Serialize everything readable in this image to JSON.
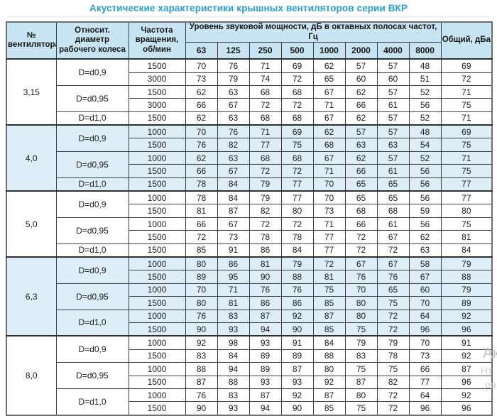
{
  "title": "Акустические характеристики крышных вентиляторов серии ВКР",
  "colors": {
    "title_accent": "#2a9ed6",
    "header_bg": "#c8e4f2",
    "highlight_row_bg": "#ddeef8",
    "border": "#3f3f3f",
    "watermark": "#c6c9cc"
  },
  "table": {
    "header": {
      "col_fan": "№ вентилятора",
      "col_diameter": "Относит. диаметр рабочего колеса",
      "col_speed": "Частота вращения, об/мин",
      "col_levels": "Уровень звуковой мощности, дБ в октавных полосах частот, Гц",
      "frequencies": [
        "63",
        "125",
        "250",
        "500",
        "1000",
        "2000",
        "4000",
        "8000"
      ],
      "col_total": "Общий, дБа"
    },
    "groups": [
      {
        "fan": "3,15",
        "highlight": false,
        "sections": [
          {
            "diameter": "D=d0,9",
            "rows": [
              {
                "speed": "1500",
                "levels": [
                  70,
                  76,
                  71,
                  69,
                  62,
                  57,
                  57,
                  48
                ],
                "total": 69
              },
              {
                "speed": "3000",
                "levels": [
                  73,
                  79,
                  74,
                  72,
                  65,
                  60,
                  60,
                  51
                ],
                "total": 72
              }
            ]
          },
          {
            "diameter": "D=d0,95",
            "rows": [
              {
                "speed": "1500",
                "levels": [
                  62,
                  63,
                  68,
                  68,
                  67,
                  62,
                  57,
                  52
                ],
                "total": 71
              },
              {
                "speed": "3000",
                "levels": [
                  66,
                  67,
                  72,
                  72,
                  71,
                  66,
                  61,
                  56
                ],
                "total": 75
              }
            ]
          },
          {
            "diameter": "D=d1,0",
            "rows": [
              {
                "speed": "1500",
                "levels": [
                  62,
                  63,
                  68,
                  68,
                  67,
                  62,
                  57,
                  52
                ],
                "total": 71
              }
            ]
          }
        ]
      },
      {
        "fan": "4,0",
        "highlight": true,
        "sections": [
          {
            "diameter": "D=d0,9",
            "rows": [
              {
                "speed": "1000",
                "levels": [
                  70,
                  76,
                  71,
                  69,
                  62,
                  57,
                  57,
                  48
                ],
                "total": 69
              },
              {
                "speed": "1500",
                "levels": [
                  76,
                  82,
                  77,
                  75,
                  68,
                  63,
                  63,
                  54
                ],
                "total": 75
              }
            ]
          },
          {
            "diameter": "D=d0,95",
            "rows": [
              {
                "speed": "1000",
                "levels": [
                  62,
                  63,
                  68,
                  68,
                  67,
                  62,
                  57,
                  52
                ],
                "total": 71
              },
              {
                "speed": "1500",
                "levels": [
                  66,
                  67,
                  72,
                  72,
                  71,
                  66,
                  61,
                  56
                ],
                "total": 75
              }
            ]
          },
          {
            "diameter": "D=d1,0",
            "rows": [
              {
                "speed": "1500",
                "levels": [
                  78,
                  84,
                  79,
                  77,
                  70,
                  65,
                  65,
                  56
                ],
                "total": 77
              }
            ]
          }
        ]
      },
      {
        "fan": "5,0",
        "highlight": false,
        "sections": [
          {
            "diameter": "D=d0,9",
            "rows": [
              {
                "speed": "1000",
                "levels": [
                  78,
                  84,
                  79,
                  77,
                  70,
                  65,
                  65,
                  56
                ],
                "total": 77
              },
              {
                "speed": "1500",
                "levels": [
                  81,
                  87,
                  82,
                  80,
                  73,
                  68,
                  68,
                  59
                ],
                "total": 80
              }
            ]
          },
          {
            "diameter": "D=d0,95",
            "rows": [
              {
                "speed": "1000",
                "levels": [
                  66,
                  67,
                  72,
                  72,
                  71,
                  66,
                  61,
                  56
                ],
                "total": 75
              },
              {
                "speed": "1500",
                "levels": [
                  72,
                  73,
                  78,
                  78,
                  77,
                  72,
                  67,
                  62
                ],
                "total": 81
              }
            ]
          },
          {
            "diameter": "D=d1,0",
            "rows": [
              {
                "speed": "1500",
                "levels": [
                  85,
                  91,
                  86,
                  84,
                  77,
                  72,
                  72,
                  63
                ],
                "total": 84
              }
            ]
          }
        ]
      },
      {
        "fan": "6,3",
        "highlight": true,
        "sections": [
          {
            "diameter": "D=d0,9",
            "rows": [
              {
                "speed": "1000",
                "levels": [
                  80,
                  86,
                  81,
                  79,
                  72,
                  67,
                  67,
                  58
                ],
                "total": 79
              },
              {
                "speed": "1500",
                "levels": [
                  89,
                  95,
                  90,
                  88,
                  81,
                  76,
                  76,
                  67
                ],
                "total": 88
              }
            ]
          },
          {
            "diameter": "D=d0,95",
            "rows": [
              {
                "speed": "1000",
                "levels": [
                  70,
                  71,
                  76,
                  76,
                  75,
                  70,
                  65,
                  60
                ],
                "total": 79
              },
              {
                "speed": "1500",
                "levels": [
                  80,
                  81,
                  86,
                  86,
                  85,
                  80,
                  75,
                  70
                ],
                "total": 89
              }
            ]
          },
          {
            "diameter": "D=d1,0",
            "rows": [
              {
                "speed": "1000",
                "levels": [
                  76,
                  83,
                  87,
                  92,
                  87,
                  80,
                  72,
                  64
                ],
                "total": 92
              },
              {
                "speed": "1500",
                "levels": [
                  90,
                  93,
                  94,
                  90,
                  85,
                  75,
                  72,
                  96
                ],
                "total": 96
              }
            ]
          }
        ]
      },
      {
        "fan": "8,0",
        "highlight": false,
        "sections": [
          {
            "diameter": "D=d0,9",
            "rows": [
              {
                "speed": "1000",
                "levels": [
                  92,
                  98,
                  93,
                  91,
                  84,
                  79,
                  79,
                  70
                ],
                "total": 91
              },
              {
                "speed": "1500",
                "levels": [
                  83,
                  84,
                  89,
                  89,
                  88,
                  83,
                  78,
                  73
                ],
                "total": 92
              }
            ]
          },
          {
            "diameter": "D=d0,95",
            "rows": [
              {
                "speed": "1000",
                "levels": [
                  88,
                  94,
                  89,
                  87,
                  80,
                  75,
                  75,
                  66
                ],
                "total": 87
              },
              {
                "speed": "1500",
                "levels": [
                  87,
                  88,
                  93,
                  93,
                  92,
                  87,
                  82,
                  77
                ],
                "total": 96
              }
            ]
          },
          {
            "diameter": "D=d1,0",
            "rows": [
              {
                "speed": "1000",
                "levels": [
                  76,
                  83,
                  87,
                  92,
                  87,
                  80,
                  72,
                  64
                ],
                "total": 92
              },
              {
                "speed": "1500",
                "levels": [
                  90,
                  93,
                  94,
                  90,
                  85,
                  75,
                  72,
                  96
                ],
                "total": 96
              }
            ]
          }
        ]
      }
    ]
  },
  "watermark_fragments": [
    "Ак",
    "Нт",
    "ра"
  ]
}
